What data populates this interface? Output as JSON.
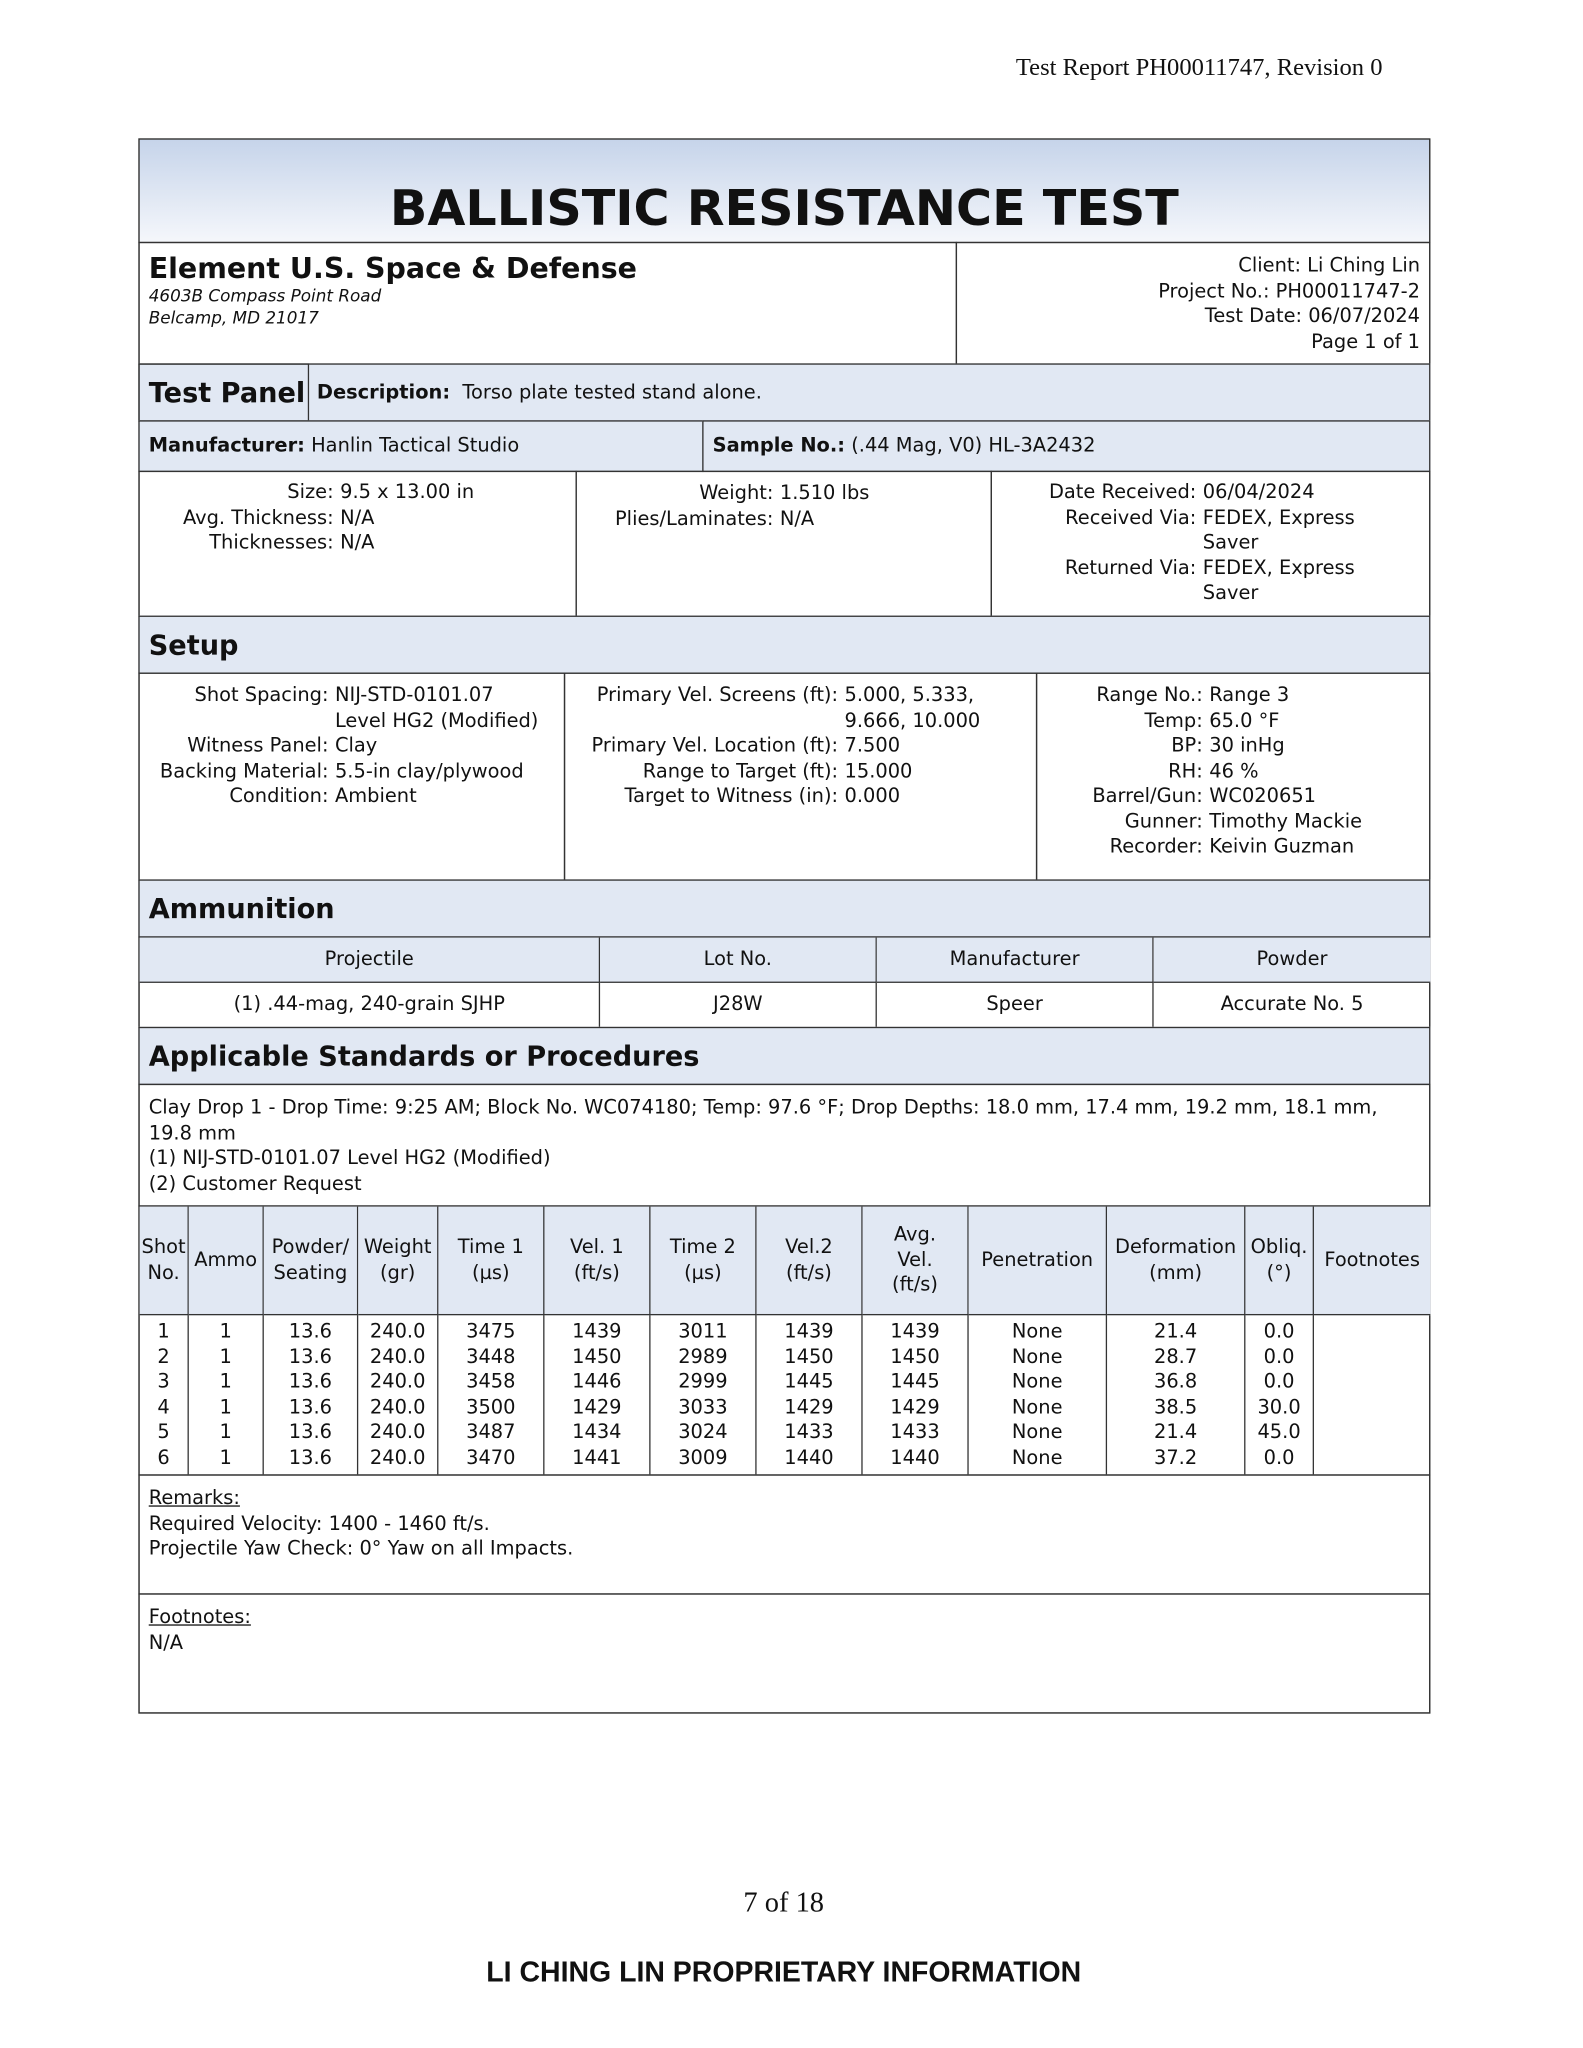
{
  "header": "Test Report PH00011747, Revision 0",
  "title": "BALLISTIC RESISTANCE TEST",
  "lab": {
    "name": "Element U.S. Space & Defense",
    "address": [
      "4603B Compass Point Road",
      "Belcamp, MD 21017"
    ]
  },
  "client": [
    "Client: Li Ching Lin",
    "Project No.: PH00011747-2",
    "Test Date: 06/07/2024",
    "Page 1 of 1"
  ],
  "test_panel": {
    "label": "Test Panel",
    "description_label": "Description:",
    "description": "Torso plate tested stand alone.",
    "manufacturer_label": "Manufacturer:",
    "manufacturer": "Hanlin Tactical Studio",
    "sample_label": "Sample No.:",
    "sample": "(.44 Mag, V0) HL-3A2432",
    "details": [
      [
        {
          "label": "Size:",
          "value": "9.5 x 13.00 in"
        },
        {
          "label": "Avg. Thickness:",
          "value": "N/A"
        },
        {
          "label": "Thicknesses:",
          "value": "N/A"
        }
      ],
      [
        {
          "label": "Weight:",
          "value": "1.510 lbs"
        },
        {
          "label": "Plies/Laminates:",
          "value": "N/A"
        }
      ],
      [
        {
          "label": "Date Received:",
          "value": "06/04/2024"
        },
        {
          "label": "Received Via:",
          "value": "FEDEX, Express Saver"
        },
        {
          "label": "Returned Via:",
          "value": "FEDEX, Express Saver"
        }
      ]
    ]
  },
  "setup": {
    "title": "Setup",
    "details": [
      [
        {
          "label": "Shot Spacing:",
          "value": "NIJ-STD-0101.07 Level HG2 (Modified)"
        },
        {
          "label": "Witness Panel:",
          "value": "Clay"
        },
        {
          "label": "Backing Material:",
          "value": "5.5-in clay/plywood"
        },
        {
          "label": "Condition:",
          "value": "Ambient"
        }
      ],
      [
        {
          "label": "Primary Vel. Screens (ft):",
          "value": "5.000, 5.333, 9.666, 10.000"
        },
        {
          "label": "Primary Vel. Location (ft):",
          "value": "7.500"
        },
        {
          "label": "Range to Target (ft):",
          "value": "15.000"
        },
        {
          "label": "Target to Witness (in):",
          "value": "0.000"
        }
      ],
      [
        {
          "label": "Range No.:",
          "value": "Range 3"
        },
        {
          "label": "Temp:",
          "value": "65.0 °F"
        },
        {
          "label": "BP:",
          "value": "30 inHg"
        },
        {
          "label": "RH:",
          "value": "46 %"
        },
        {
          "label": "Barrel/Gun:",
          "value": "WC020651"
        },
        {
          "label": "Gunner:",
          "value": "Timothy Mackie"
        },
        {
          "label": "Recorder:",
          "value": "Keivin Guzman"
        }
      ]
    ]
  },
  "ammunition": {
    "title": "Ammunition",
    "headers": [
      "Projectile",
      "Lot No.",
      "Manufacturer",
      "Powder"
    ],
    "row": [
      "(1) .44-mag, 240-grain SJHP",
      "J28W",
      "Speer",
      "Accurate No. 5"
    ]
  },
  "standards": {
    "title": "Applicable Standards or Procedures",
    "lines": [
      "Clay Drop 1 - Drop Time: 9:25 AM; Block No. WC074180; Temp: 97.6 °F; Drop Depths: 18.0 mm, 17.4 mm, 19.2 mm, 18.1 mm, 19.8 mm",
      "(1) NIJ-STD-0101.07 Level HG2 (Modified)",
      "(2) Customer Request"
    ]
  },
  "shots": {
    "headers": [
      "Shot\nNo.",
      "Ammo",
      "Powder/\nSeating",
      "Weight\n(gr)",
      "Time 1\n(µs)",
      "Vel. 1\n(ft/s)",
      "Time 2\n(µs)",
      "Vel.2\n(ft/s)",
      "Avg.\nVel.\n(ft/s)",
      "Penetration",
      "Deformation\n(mm)",
      "Obliq.\n(°)",
      "Footnotes"
    ],
    "rows": [
      [
        "1",
        "1",
        "13.6",
        "240.0",
        "3475",
        "1439",
        "3011",
        "1439",
        "1439",
        "None",
        "21.4",
        "0.0"
      ],
      [
        "2",
        "1",
        "13.6",
        "240.0",
        "3448",
        "1450",
        "2989",
        "1450",
        "1450",
        "None",
        "28.7",
        "0.0"
      ],
      [
        "3",
        "1",
        "13.6",
        "240.0",
        "3458",
        "1446",
        "2999",
        "1445",
        "1445",
        "None",
        "36.8",
        "0.0"
      ],
      [
        "4",
        "1",
        "13.6",
        "240.0",
        "3500",
        "1429",
        "3033",
        "1429",
        "1429",
        "None",
        "38.5",
        "30.0"
      ],
      [
        "5",
        "1",
        "13.6",
        "240.0",
        "3487",
        "1434",
        "3024",
        "1433",
        "1433",
        "None",
        "21.4",
        "45.0"
      ],
      [
        "6",
        "1",
        "13.6",
        "240.0",
        "3470",
        "1441",
        "3009",
        "1440",
        "1440",
        "None",
        "37.2",
        "0.0"
      ]
    ]
  },
  "remarks": {
    "label": "Remarks:",
    "lines": [
      "Required Velocity: 1400 - 1460 ft/s.",
      "Projectile Yaw Check: 0° Yaw on all Impacts."
    ]
  },
  "footnotes": {
    "label": "Footnotes:",
    "lines": [
      "N/A"
    ]
  },
  "footer": {
    "page": "7 of 18",
    "notice": "LI CHING LIN PROPRIETARY INFORMATION"
  }
}
